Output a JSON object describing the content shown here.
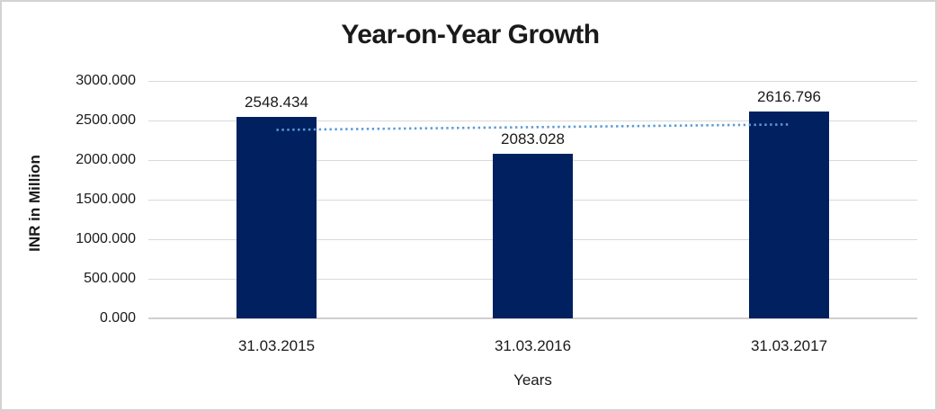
{
  "chart": {
    "title": "Year-on-Year Growth",
    "y_axis_title": "INR in Million",
    "x_axis_title": "Years"
  },
  "chart_data": {
    "type": "bar",
    "title": "Year-on-Year Growth",
    "xlabel": "Years",
    "ylabel": "INR in Million",
    "categories": [
      "31.03.2015",
      "31.03.2016",
      "31.03.2017"
    ],
    "values": [
      2548.434,
      2083.028,
      2616.796
    ],
    "value_labels": [
      "2548.434",
      "2083.028",
      "2616.796"
    ],
    "ylim": [
      0,
      3000
    ],
    "y_tick_step": 500,
    "y_tick_labels": [
      "3000.000",
      "2500.000",
      "2000.000",
      "1500.000",
      "1000.000",
      "500.000",
      "0.000"
    ],
    "grid": true,
    "legend": false,
    "trendline": {
      "type": "linear",
      "style": "dotted",
      "color": "#5B9BD5",
      "endpoint_values": [
        2381.9,
        2450.3
      ]
    },
    "colors": {
      "bar": "#002060",
      "gridline": "#D9D9D9",
      "axis_line": "#CFCFCF",
      "text": "#1A1A1A",
      "trendline": "#5B9BD5",
      "border": "#D3D3D3",
      "background": "#FFFFFF"
    }
  }
}
